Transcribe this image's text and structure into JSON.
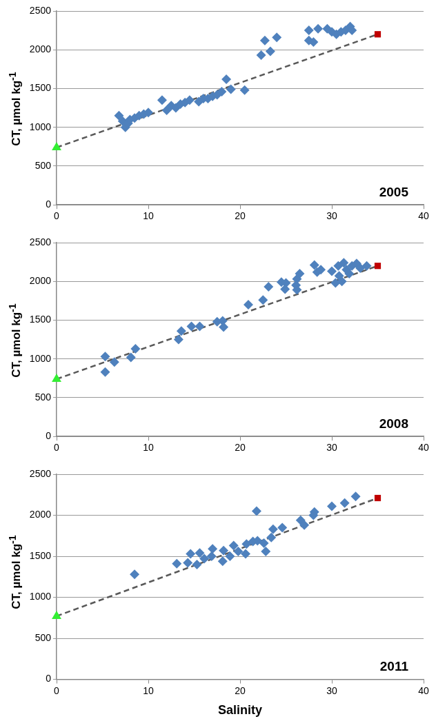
{
  "chart_data": [
    {
      "type": "scatter",
      "ylabel": "CT, µmol kg$^{-1}$",
      "annotations": [
        "2005"
      ],
      "xlim": [
        0,
        40
      ],
      "xticks": [
        0,
        10,
        20,
        30,
        40
      ],
      "ylim": [
        0,
        2500
      ],
      "yticks": [
        0,
        500,
        1000,
        1500,
        2000,
        2500
      ],
      "grid": "y",
      "legend": false,
      "series": [
        {
          "color": "#4f81bd",
          "marker": "diamond",
          "x": [
            6.8,
            7.2,
            7.5,
            7.8,
            8.0,
            8.5,
            9.0,
            9.5,
            10.0,
            11.5,
            12.0,
            12.5,
            13.0,
            13.5,
            14.0,
            14.5,
            15.5,
            16.0,
            16.5,
            17.0,
            17.5,
            18.0,
            18.5,
            18.8,
            19.0,
            20.5,
            22.3,
            22.7,
            23.3,
            24.0,
            27.5,
            27.5,
            28.0,
            28.5,
            29.5,
            30.0,
            30.5,
            31.0,
            31.5,
            32.0,
            32.2
          ],
          "values": [
            1150,
            1080,
            1000,
            1050,
            1100,
            1120,
            1150,
            1170,
            1190,
            1350,
            1220,
            1280,
            1250,
            1300,
            1320,
            1350,
            1330,
            1370,
            1370,
            1400,
            1420,
            1460,
            1620,
            null,
            1490,
            1480,
            1930,
            2120,
            1980,
            2160,
            2250,
            2120,
            2100,
            2270,
            2270,
            2230,
            2200,
            2230,
            2250,
            2300,
            2250
          ]
        },
        {
          "color": "#33ee33",
          "marker": "triangle",
          "x": [
            0
          ],
          "values": [
            740
          ]
        },
        {
          "color": "#c00000",
          "marker": "square",
          "x": [
            35
          ],
          "values": [
            2200
          ]
        },
        {
          "type": "line",
          "color": "#595959",
          "marker": "none",
          "line_style": "dashed",
          "x": [
            0,
            35
          ],
          "values": [
            740,
            2200
          ]
        }
      ]
    },
    {
      "type": "scatter",
      "ylabel": "CT, µmol kg$^{-1}$",
      "annotations": [
        "2008"
      ],
      "xlim": [
        0,
        40
      ],
      "xticks": [
        0,
        10,
        20,
        30,
        40
      ],
      "ylim": [
        0,
        2500
      ],
      "yticks": [
        0,
        500,
        1000,
        1500,
        2000,
        2500
      ],
      "grid": "y",
      "legend": false,
      "series": [
        {
          "color": "#4f81bd",
          "marker": "diamond",
          "x": [
            5.3,
            5.3,
            6.3,
            8.1,
            8.6,
            13.3,
            13.6,
            14.7,
            15.6,
            17.5,
            18.1,
            18.2,
            20.9,
            22.5,
            23.1,
            24.5,
            25.0,
            24.9,
            26.1,
            26.2,
            26.2,
            26.5,
            28.1,
            28.4,
            28.8,
            30.0,
            30.4,
            30.7,
            31.1,
            31.3,
            31.6,
            32.2,
            32.7,
            33.1,
            33.8,
            30.8,
            31.9
          ],
          "values": [
            1030,
            830,
            960,
            1020,
            1130,
            1250,
            1360,
            1420,
            1420,
            1480,
            1490,
            1410,
            1700,
            1760,
            1930,
            1990,
            1980,
            1900,
            1950,
            1890,
            2030,
            2100,
            2210,
            2120,
            2150,
            2130,
            1980,
            2200,
            2000,
            2240,
            2150,
            2200,
            2230,
            2170,
            2200,
            2070,
            2100
          ]
        },
        {
          "color": "#33ee33",
          "marker": "triangle",
          "x": [
            0
          ],
          "values": [
            740
          ]
        },
        {
          "color": "#c00000",
          "marker": "square",
          "x": [
            35
          ],
          "values": [
            2200
          ]
        },
        {
          "type": "line",
          "color": "#595959",
          "marker": "none",
          "line_style": "dashed",
          "x": [
            0,
            35
          ],
          "values": [
            740,
            2200
          ]
        }
      ]
    },
    {
      "type": "scatter",
      "xlabel": "Salinity",
      "ylabel": "CT, µmol kg$^{-1}$",
      "annotations": [
        "2011"
      ],
      "xlim": [
        0,
        40
      ],
      "xticks": [
        0,
        10,
        20,
        30,
        40
      ],
      "ylim": [
        0,
        2500
      ],
      "yticks": [
        0,
        500,
        1000,
        1500,
        2000,
        2500
      ],
      "grid": "y",
      "legend": false,
      "series": [
        {
          "color": "#4f81bd",
          "marker": "diamond",
          "x": [
            8.5,
            13.1,
            14.3,
            14.6,
            15.3,
            15.6,
            16.1,
            16.9,
            17.0,
            18.1,
            18.2,
            18.9,
            19.3,
            19.8,
            20.6,
            20.7,
            21.4,
            21.8,
            21.9,
            22.6,
            22.8,
            23.4,
            23.6,
            24.6,
            26.6,
            27.0,
            28.1,
            28.0,
            30.0,
            31.4,
            32.4,
            32.6
          ],
          "values": [
            1280,
            1410,
            1420,
            1530,
            1400,
            1540,
            1470,
            1500,
            1590,
            1440,
            1570,
            1500,
            1630,
            1560,
            1530,
            1650,
            1680,
            2050,
            1690,
            1660,
            1560,
            1730,
            1830,
            1850,
            1940,
            1880,
            2040,
            2000,
            2110,
            2150,
            null,
            2230
          ]
        },
        {
          "color": "#33ee33",
          "marker": "triangle",
          "x": [
            0
          ],
          "values": [
            770
          ]
        },
        {
          "color": "#c00000",
          "marker": "square",
          "x": [
            35
          ],
          "values": [
            2210
          ]
        },
        {
          "type": "line",
          "color": "#595959",
          "marker": "none",
          "line_style": "dashed",
          "x": [
            0,
            35
          ],
          "values": [
            770,
            2210
          ]
        }
      ]
    }
  ]
}
